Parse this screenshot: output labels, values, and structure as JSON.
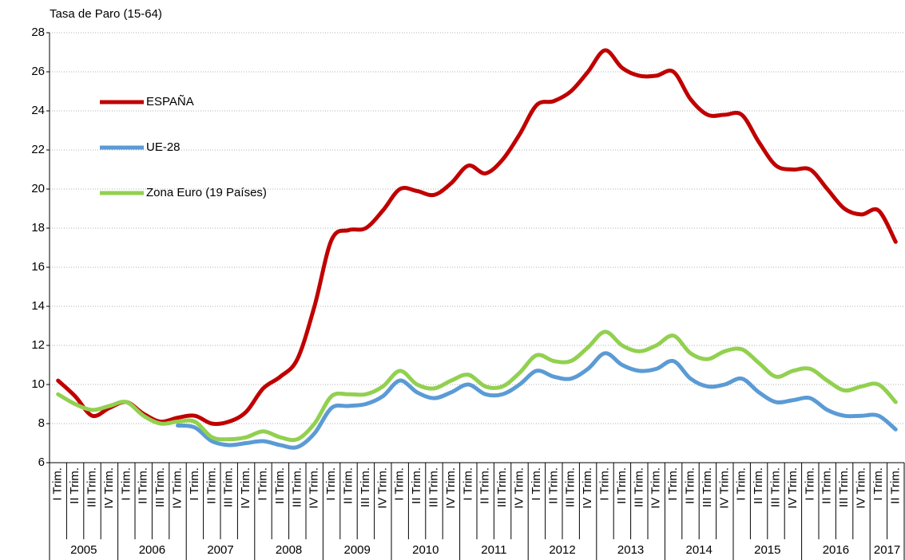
{
  "chart_data": {
    "type": "line",
    "y_label": "Tasa de Paro (15-64)",
    "categories": [
      "I Trim.",
      "II Trim.",
      "III Trim.",
      "IV Trim.",
      "I Trim.",
      "II Trim.",
      "III Trim.",
      "IV Trim.",
      "I Trim.",
      "II Trim.",
      "III Trim.",
      "IV Trim.",
      "I Trim.",
      "II Trim.",
      "III Trim.",
      "IV Trim.",
      "I Trim.",
      "II Trim.",
      "III Trim.",
      "IV Trim.",
      "I Trim.",
      "II Trim.",
      "III Trim.",
      "IV Trim.",
      "I Trim.",
      "II Trim.",
      "III Trim.",
      "IV Trim.",
      "I Trim.",
      "II Trim.",
      "III Trim.",
      "IV Trim.",
      "I Trim.",
      "II Trim.",
      "III Trim.",
      "IV Trim.",
      "I Trim.",
      "II Trim.",
      "III Trim.",
      "IV Trim.",
      "I Trim.",
      "II Trim.",
      "III Trim.",
      "IV Trim.",
      "I Trim.",
      "II Trim.",
      "III Trim.",
      "IV Trim.",
      "I Trim.",
      "II Trim."
    ],
    "years": [
      "2005",
      "2006",
      "2007",
      "2008",
      "2009",
      "2010",
      "2011",
      "2012",
      "2013",
      "2014",
      "2015",
      "2016",
      "2017"
    ],
    "series": [
      {
        "name": "ESPAÑA",
        "color": "#c00000",
        "values": [
          10.2,
          9.4,
          8.4,
          8.8,
          9.1,
          8.5,
          8.1,
          8.3,
          8.4,
          8.0,
          8.1,
          8.6,
          9.8,
          10.4,
          11.3,
          14.0,
          17.4,
          17.9,
          18.0,
          18.9,
          20.0,
          19.9,
          19.7,
          20.3,
          21.2,
          20.8,
          21.5,
          22.8,
          24.3,
          24.5,
          25.0,
          26.0,
          27.1,
          26.2,
          25.8,
          25.8,
          26.0,
          24.6,
          23.8,
          23.8,
          23.8,
          22.4,
          21.2,
          21.0,
          21.0,
          20.0,
          19.0,
          18.7,
          18.9,
          17.3
        ]
      },
      {
        "name": "UE-28",
        "color": "#5b9bd5",
        "values": [
          null,
          null,
          null,
          null,
          null,
          null,
          null,
          7.9,
          7.8,
          7.1,
          6.9,
          7.0,
          7.1,
          6.9,
          6.8,
          7.5,
          8.8,
          8.9,
          9.0,
          9.4,
          10.2,
          9.6,
          9.3,
          9.6,
          10.0,
          9.5,
          9.5,
          10.0,
          10.7,
          10.4,
          10.3,
          10.8,
          11.6,
          11.0,
          10.7,
          10.8,
          11.2,
          10.3,
          9.9,
          10.0,
          10.3,
          9.6,
          9.1,
          9.2,
          9.3,
          8.7,
          8.4,
          8.4,
          8.4,
          7.7
        ]
      },
      {
        "name": "Zona Euro (19 Países)",
        "color": "#92d050",
        "values": [
          9.5,
          9.0,
          8.7,
          8.9,
          9.1,
          8.4,
          8.0,
          8.1,
          8.1,
          7.3,
          7.2,
          7.3,
          7.6,
          7.3,
          7.2,
          8.0,
          9.4,
          9.5,
          9.5,
          9.9,
          10.7,
          10.0,
          9.8,
          10.2,
          10.5,
          9.9,
          9.9,
          10.6,
          11.5,
          11.2,
          11.2,
          11.9,
          12.7,
          12.0,
          11.7,
          12.0,
          12.5,
          11.6,
          11.3,
          11.7,
          11.8,
          11.1,
          10.4,
          10.7,
          10.8,
          10.2,
          9.7,
          9.9,
          10.0,
          9.1
        ]
      }
    ],
    "ylim": [
      6,
      28
    ],
    "yticks": [
      6,
      8,
      10,
      12,
      14,
      16,
      18,
      20,
      22,
      24,
      26,
      28
    ],
    "grid": true,
    "legend": "upper left"
  }
}
